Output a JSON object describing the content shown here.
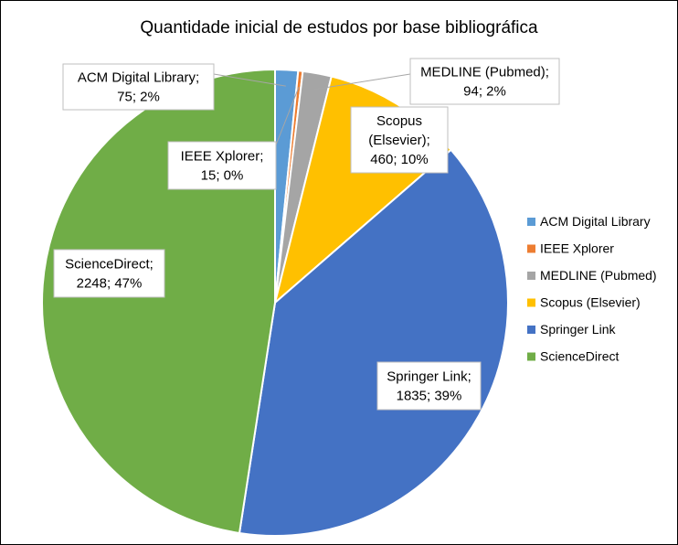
{
  "chart_data": {
    "type": "pie",
    "title": "Quantidade inicial de estudos por base bibliográfica",
    "legend_position": "right",
    "slices": [
      {
        "name": "ACM Digital Library",
        "value": 75,
        "percent_label": "2%",
        "color": "#5B9BD5",
        "label_lines": [
          "ACM Digital Library;",
          "75; 2%"
        ]
      },
      {
        "name": "IEEE Xplorer",
        "value": 15,
        "percent_label": "0%",
        "color": "#ED7D31",
        "label_lines": [
          "IEEE Xplorer;",
          "15; 0%"
        ]
      },
      {
        "name": "MEDLINE (Pubmed)",
        "value": 94,
        "percent_label": "2%",
        "color": "#A5A5A5",
        "label_lines": [
          "MEDLINE (Pubmed);",
          "94; 2%"
        ]
      },
      {
        "name": "Scopus (Elsevier)",
        "value": 460,
        "percent_label": "10%",
        "color": "#FFC000",
        "label_lines": [
          "Scopus",
          "(Elsevier);",
          "460; 10%"
        ]
      },
      {
        "name": "Springer Link",
        "value": 1835,
        "percent_label": "39%",
        "color": "#4472C4",
        "label_lines": [
          "Springer Link;",
          "1835; 39%"
        ]
      },
      {
        "name": "ScienceDirect",
        "value": 2248,
        "percent_label": "47%",
        "color": "#70AD47",
        "label_lines": [
          "ScienceDirect;",
          "2248; 47%"
        ]
      }
    ]
  }
}
